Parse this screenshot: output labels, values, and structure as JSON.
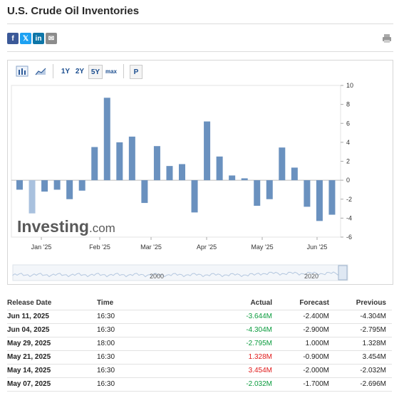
{
  "page": {
    "title": "U.S. Crude Oil Inventories"
  },
  "share": [
    {
      "name": "facebook-icon",
      "glyph": "f",
      "color": "#3b5998"
    },
    {
      "name": "twitter-icon",
      "glyph": "𝕏",
      "color": "#1da1f2"
    },
    {
      "name": "linkedin-icon",
      "glyph": "in",
      "color": "#0e76a8"
    },
    {
      "name": "email-icon",
      "glyph": "✉",
      "color": "#8c8c8c"
    }
  ],
  "toolbar": {
    "range_buttons": [
      "1Y",
      "2Y",
      "5Y",
      "max"
    ],
    "selected_range": "5Y",
    "p_label": "P"
  },
  "branding": {
    "investing": "Investing",
    "dotcom": ".com"
  },
  "navigator": {
    "labels": [
      "2000",
      "2020"
    ]
  },
  "chart_data": {
    "type": "bar",
    "x_labels": [
      "Jan '25",
      "Feb '25",
      "Mar '25",
      "Apr '25",
      "May '25",
      "Jun '25"
    ],
    "y_ticks": [
      "10",
      "8",
      "6",
      "4",
      "2",
      "0",
      "-2",
      "-4",
      "-6"
    ],
    "ylim": [
      -6,
      10
    ],
    "values": [
      -1.0,
      -3.5,
      -1.2,
      -1.0,
      -2.0,
      -1.1,
      3.5,
      8.7,
      4.0,
      4.6,
      -2.4,
      3.6,
      1.5,
      1.7,
      -3.4,
      6.2,
      2.5,
      0.5,
      0.2,
      -2.7,
      -2.0,
      3.45,
      1.33,
      -2.8,
      -4.3,
      -3.64
    ],
    "color": "#6a91bf",
    "last_color": "#a9c1de"
  },
  "table": {
    "headers": [
      "Release Date",
      "Time",
      "Actual",
      "Forecast",
      "Previous"
    ],
    "rows": [
      {
        "date": "Jun 11, 2025",
        "time": "16:30",
        "actual": "-3.644M",
        "actual_color": "green",
        "forecast": "-2.400M",
        "previous": "-4.304M"
      },
      {
        "date": "Jun 04, 2025",
        "time": "16:30",
        "actual": "-4.304M",
        "actual_color": "green",
        "forecast": "-2.900M",
        "previous": "-2.795M"
      },
      {
        "date": "May 29, 2025",
        "time": "18:00",
        "actual": "-2.795M",
        "actual_color": "green",
        "forecast": "1.000M",
        "previous": "1.328M"
      },
      {
        "date": "May 21, 2025",
        "time": "16:30",
        "actual": "1.328M",
        "actual_color": "red",
        "forecast": "-0.900M",
        "previous": "3.454M"
      },
      {
        "date": "May 14, 2025",
        "time": "16:30",
        "actual": "3.454M",
        "actual_color": "red",
        "forecast": "-2.000M",
        "previous": "-2.032M"
      },
      {
        "date": "May 07, 2025",
        "time": "16:30",
        "actual": "-2.032M",
        "actual_color": "green",
        "forecast": "-1.700M",
        "previous": "-2.696M"
      }
    ]
  }
}
